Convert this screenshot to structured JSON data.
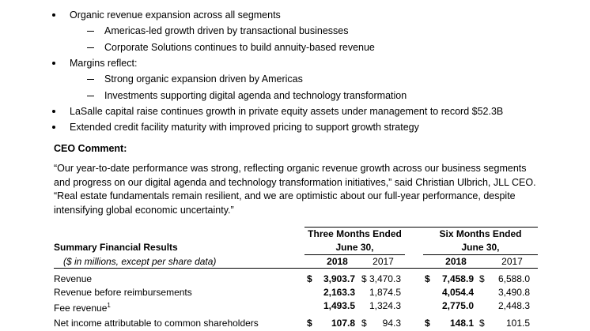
{
  "bullets": [
    {
      "text": "Organic revenue expansion across all segments",
      "sub": [
        "Americas-led growth driven by transactional businesses",
        "Corporate Solutions continues to build annuity-based revenue"
      ]
    },
    {
      "text": "Margins reflect:",
      "sub": [
        "Strong organic expansion driven by Americas",
        "Investments supporting digital agenda and technology transformation"
      ]
    },
    {
      "text": "LaSalle capital raise continues growth in private equity assets under management to record $52.3B",
      "sub": []
    },
    {
      "text": "Extended credit facility maturity with improved pricing to support growth strategy",
      "sub": []
    }
  ],
  "ceo": {
    "heading": "CEO Comment:",
    "paragraph": "“Our year-to-date performance was strong, reflecting organic revenue growth across our business segments and progress on our digital agenda and technology transformation initiatives,” said Christian Ulbrich, JLL CEO. “Real estate fundamentals remain resilient, and we are optimistic about our full-year performance, despite intensifying global economic uncertainty.”"
  },
  "table": {
    "title": "Summary Financial Results",
    "subtitle": "($ in millions, except per share data)",
    "groups": [
      {
        "line1": "Three Months Ended",
        "line2": "June 30,",
        "years": [
          "2018",
          "2017"
        ]
      },
      {
        "line1": "Six Months Ended",
        "line2": "June 30,",
        "years": [
          "2018",
          "2017"
        ]
      }
    ],
    "rows": [
      {
        "label": "Revenue",
        "cells": [
          {
            "sign": "$",
            "value": "3,903.7"
          },
          {
            "sign": "$",
            "value": "3,470.3"
          },
          {
            "sign": "$",
            "value": "7,458.9"
          },
          {
            "sign": "$",
            "value": "6,588.0"
          }
        ]
      },
      {
        "label": "Revenue before reimbursements",
        "cells": [
          {
            "value": "2,163.3"
          },
          {
            "value": "1,874.5"
          },
          {
            "value": "4,054.4"
          },
          {
            "value": "3,490.8"
          }
        ]
      },
      {
        "label": "Fee revenue",
        "note": "1",
        "cells": [
          {
            "value": "1,493.5"
          },
          {
            "value": "1,324.3"
          },
          {
            "value": "2,775.0"
          },
          {
            "value": "2,448.3"
          }
        ]
      },
      {
        "label": "Net income attributable to common shareholders",
        "cells": [
          {
            "sign": "$",
            "value": "107.8"
          },
          {
            "sign": "$",
            "value": "94.3"
          },
          {
            "sign": "$",
            "value": "148.1"
          },
          {
            "sign": "$",
            "value": "101.5"
          }
        ]
      }
    ]
  }
}
